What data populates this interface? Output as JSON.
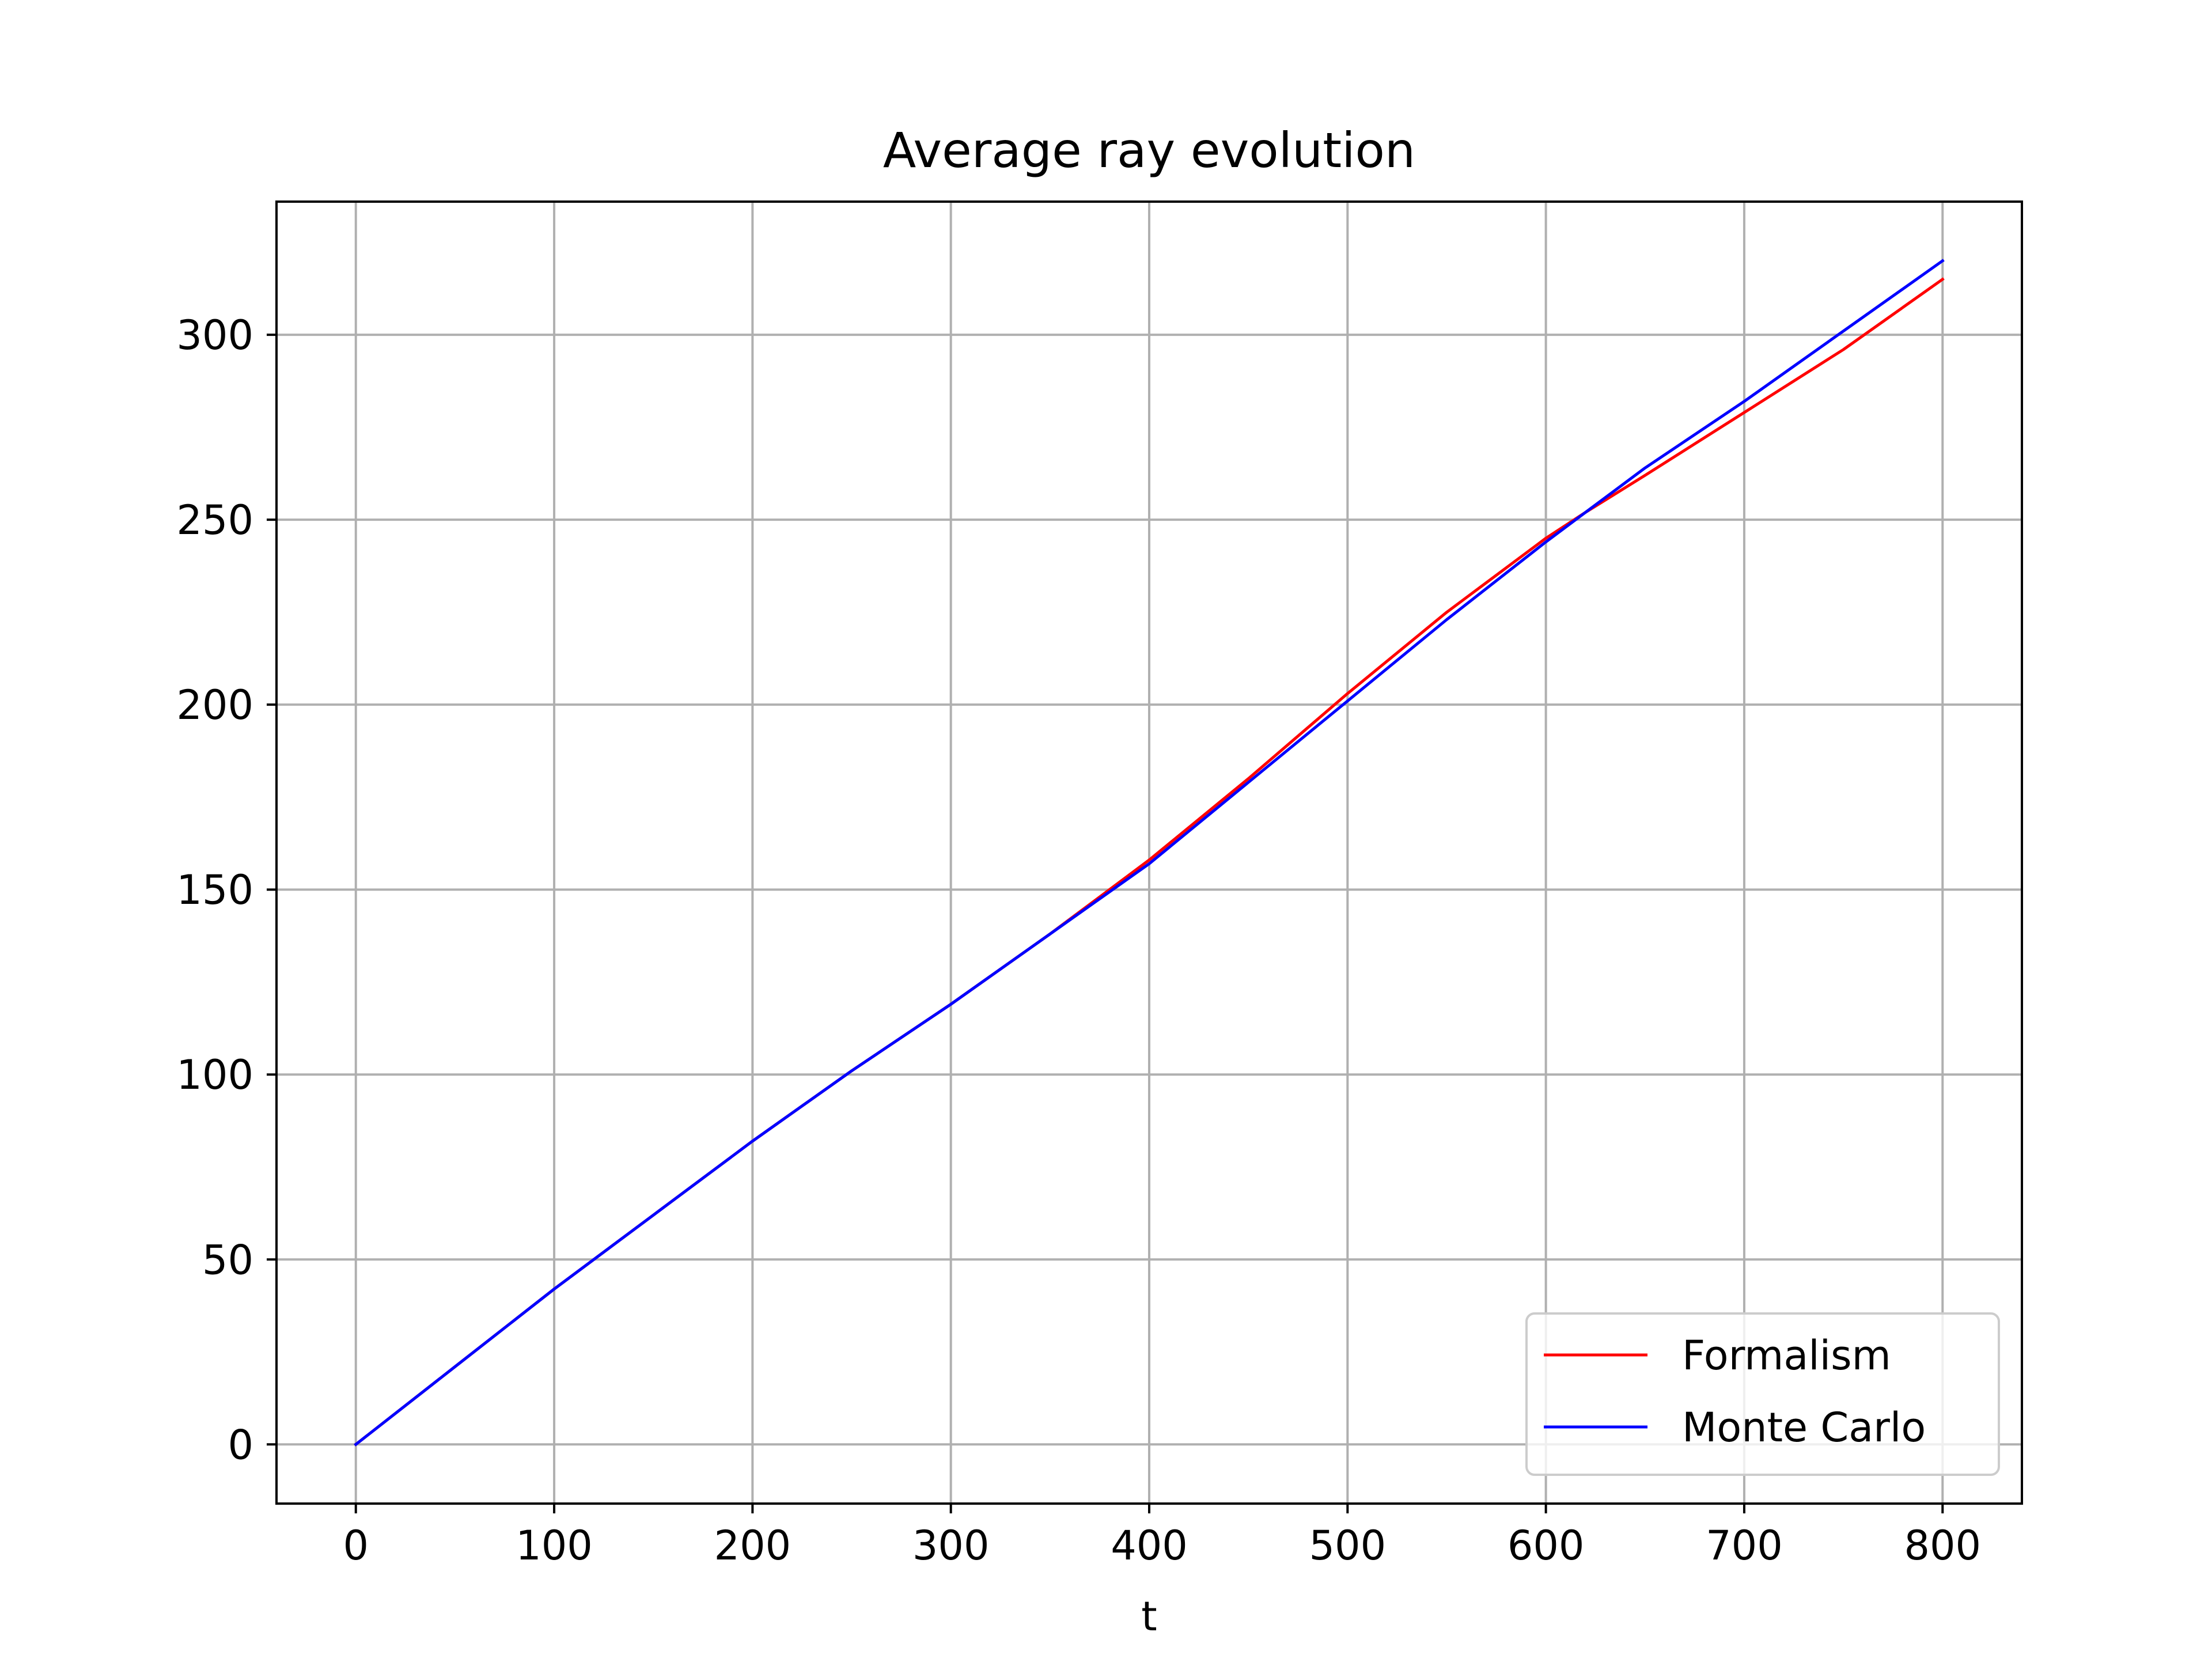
{
  "chart_data": {
    "type": "line",
    "title": "Average ray evolution",
    "xlabel": "t",
    "ylabel": "",
    "xlim": [
      -40,
      840
    ],
    "ylim": [
      -16,
      336
    ],
    "xticks": [
      0,
      100,
      200,
      300,
      400,
      500,
      600,
      700,
      800
    ],
    "yticks": [
      0,
      50,
      100,
      150,
      200,
      250,
      300
    ],
    "xtick_labels": [
      "0",
      "100",
      "200",
      "300",
      "400",
      "500",
      "600",
      "700",
      "800"
    ],
    "ytick_labels": [
      "0",
      "50",
      "100",
      "150",
      "200",
      "250",
      "300"
    ],
    "grid": true,
    "legend_position": "bottom-right",
    "series": [
      {
        "name": "Formalism",
        "color": "#ff0000",
        "x": [
          0,
          50,
          100,
          150,
          200,
          250,
          300,
          350,
          400,
          450,
          500,
          550,
          600,
          620,
          650,
          700,
          750,
          800
        ],
        "y": [
          0,
          21,
          42,
          62,
          82,
          101,
          119,
          138,
          158,
          180,
          203,
          225,
          245,
          252,
          262,
          279,
          296,
          315
        ]
      },
      {
        "name": "Monte Carlo",
        "color": "#0000ff",
        "x": [
          0,
          50,
          100,
          150,
          200,
          250,
          300,
          350,
          400,
          450,
          500,
          550,
          600,
          620,
          650,
          700,
          750,
          800
        ],
        "y": [
          0,
          21,
          42,
          62,
          82,
          101,
          119,
          138,
          157,
          179,
          201,
          223,
          244,
          252,
          264,
          282,
          301,
          320
        ]
      }
    ]
  }
}
